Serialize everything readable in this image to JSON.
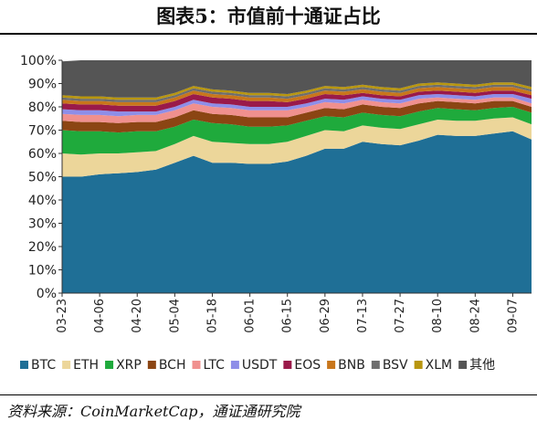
{
  "title": "图表5：市值前十通证占比",
  "source": "资料来源：CoinMarketCap，通证通研究院",
  "chart_data": {
    "type": "area",
    "stacked": true,
    "title": "图表5：市值前十通证占比",
    "ylim": [
      0,
      100
    ],
    "y_ticks": [
      "0%",
      "10%",
      "20%",
      "30%",
      "40%",
      "50%",
      "60%",
      "70%",
      "80%",
      "90%",
      "100%"
    ],
    "x_ticks": [
      "03-23",
      "04-06",
      "04-20",
      "05-04",
      "05-18",
      "06-01",
      "06-15",
      "06-29",
      "07-13",
      "07-27",
      "08-10",
      "08-24",
      "09-07"
    ],
    "x_points": [
      "03-23",
      "03-30",
      "04-06",
      "04-13",
      "04-20",
      "04-27",
      "05-04",
      "05-11",
      "05-18",
      "05-25",
      "06-01",
      "06-08",
      "06-15",
      "06-22",
      "06-29",
      "07-06",
      "07-13",
      "07-20",
      "07-27",
      "08-03",
      "08-10",
      "08-17",
      "08-24",
      "08-31",
      "09-07",
      "09-14"
    ],
    "grid": false,
    "legend_position": "bottom",
    "series": [
      {
        "name": "BTC",
        "color": "#1f6f96",
        "values": [
          50,
          50,
          51,
          51.5,
          52,
          53,
          56,
          59,
          56,
          56,
          55.5,
          55.5,
          56.5,
          59,
          62,
          62,
          65,
          64,
          63.5,
          65.5,
          68,
          67.5,
          67.5,
          68.5,
          69.5,
          66
        ]
      },
      {
        "name": "ETH",
        "color": "#ecd69a",
        "values": [
          10,
          9.5,
          9,
          8.5,
          8.5,
          8,
          8,
          8.5,
          9,
          8.5,
          8.5,
          8.5,
          8.5,
          8.5,
          8,
          7.5,
          7,
          7,
          7,
          7,
          6.5,
          6.5,
          6.5,
          6.5,
          6,
          6.5
        ]
      },
      {
        "name": "XRP",
        "color": "#1faa3c",
        "values": [
          10,
          10,
          9.5,
          9,
          9,
          8.5,
          7.5,
          7,
          8,
          8,
          7.5,
          7.5,
          7,
          6.5,
          6,
          6,
          5.5,
          5.5,
          5.5,
          5.5,
          5,
          5,
          4.5,
          4.5,
          4.5,
          5
        ]
      },
      {
        "name": "BCH",
        "color": "#8b4513",
        "values": [
          4,
          4,
          4,
          4,
          4,
          4,
          4,
          4,
          4,
          4,
          4,
          4,
          3.5,
          3.5,
          3.5,
          3.5,
          3.5,
          3.5,
          3.5,
          3.5,
          3,
          3,
          3,
          3,
          2.5,
          2.5
        ]
      },
      {
        "name": "LTC",
        "color": "#f0908e",
        "values": [
          3,
          3,
          3,
          3,
          3,
          3,
          3,
          3,
          3,
          3,
          3,
          3,
          3,
          2.5,
          2.5,
          2.5,
          2,
          2,
          2,
          2,
          1.5,
          1.5,
          1.5,
          1.5,
          1.5,
          1.5
        ]
      },
      {
        "name": "USDT",
        "color": "#8e8ee8",
        "values": [
          2,
          2,
          2,
          2,
          1.5,
          1.5,
          1.5,
          1.5,
          1.5,
          1.5,
          1.5,
          1.5,
          1.5,
          1.5,
          1.5,
          1.5,
          1.5,
          1.5,
          1.5,
          1.5,
          1.5,
          1.5,
          1.5,
          1.5,
          1.5,
          2
        ]
      },
      {
        "name": "EOS",
        "color": "#9a1a4a",
        "values": [
          2.5,
          2.5,
          2.5,
          2.5,
          2.5,
          2.5,
          2.5,
          2.5,
          2.5,
          2.5,
          2.5,
          2.5,
          2,
          2,
          2,
          2,
          1.5,
          1.5,
          1.5,
          1.5,
          1.5,
          1.5,
          1.5,
          1.5,
          1.5,
          1.5
        ]
      },
      {
        "name": "BNB",
        "color": "#c8761b",
        "values": [
          1.5,
          1.5,
          1.5,
          1.5,
          1.5,
          1.5,
          1.5,
          1.5,
          1.5,
          1.5,
          1.5,
          1.5,
          1.5,
          1.5,
          1.5,
          1.5,
          1.5,
          1.5,
          1.5,
          1.5,
          1.5,
          1.5,
          1.5,
          1.5,
          1.5,
          1.5
        ]
      },
      {
        "name": "BSV",
        "color": "#6e6e6e",
        "values": [
          1,
          1,
          1,
          1,
          1,
          1,
          1,
          1,
          1,
          1,
          1,
          1,
          1,
          1,
          1,
          1,
          1,
          1,
          1,
          1,
          1,
          1,
          1,
          1,
          1,
          1
        ]
      },
      {
        "name": "XLM",
        "color": "#b8960f",
        "values": [
          1,
          1,
          1,
          1,
          1,
          1,
          1,
          1,
          1,
          1,
          1,
          1,
          1,
          1,
          1,
          1,
          1,
          1,
          1,
          1,
          1,
          1,
          1,
          1,
          1,
          1
        ]
      },
      {
        "name": "其他",
        "color": "#555555",
        "values": [
          14.5,
          15.5,
          15.5,
          16,
          16.5,
          16.5,
          14,
          11,
          13,
          13.5,
          14.5,
          14.5,
          15,
          14.5,
          13,
          13.5,
          13,
          14,
          14.5,
          12.5,
          10.5,
          11,
          11.5,
          10.5,
          10.5,
          11.5
        ]
      }
    ]
  }
}
